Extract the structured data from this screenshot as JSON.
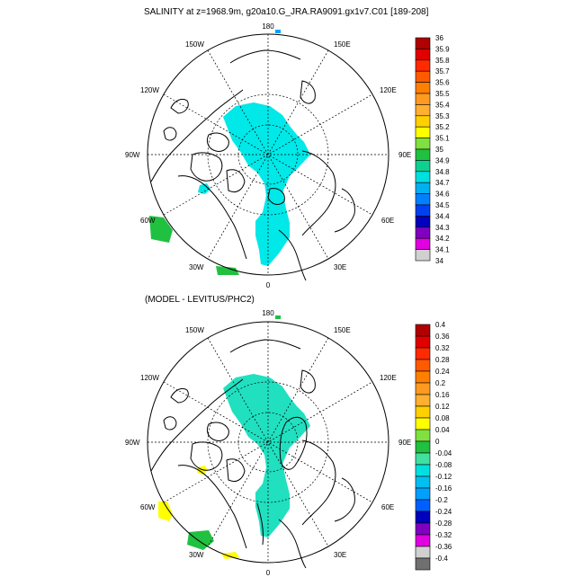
{
  "top_panel": {
    "title": "SALINITY at z=1968.9m, g20a10.G_JRA.RA9091.gx1v7.C01 [189-208]",
    "colorbar": {
      "labels": [
        "36",
        "35.9",
        "35.8",
        "35.7",
        "35.6",
        "35.5",
        "35.4",
        "35.3",
        "35.2",
        "35.1",
        "35",
        "34.9",
        "34.8",
        "34.7",
        "34.6",
        "34.5",
        "34.4",
        "34.3",
        "34.2",
        "34.1",
        "34"
      ],
      "colors": [
        "#b00000",
        "#e00000",
        "#ff2a00",
        "#ff5a00",
        "#ff8000",
        "#ff9a20",
        "#ffb030",
        "#ffd000",
        "#ffff00",
        "#7fe040",
        "#20c040",
        "#10d090",
        "#00e0e0",
        "#00b0f0",
        "#0080ff",
        "#0040f0",
        "#0000c0",
        "#8000c0",
        "#e000e0",
        "#d0d0d0"
      ]
    }
  },
  "bottom_panel": {
    "title": "(MODEL - LEVITUS/PHC2)",
    "colorbar": {
      "labels": [
        "0.4",
        "0.36",
        "0.32",
        "0.28",
        "0.24",
        "0.2",
        "0.16",
        "0.12",
        "0.08",
        "0.04",
        "0",
        "-0.04",
        "-0.08",
        "-0.12",
        "-0.16",
        "-0.2",
        "-0.24",
        "-0.28",
        "-0.32",
        "-0.36",
        "-0.4"
      ],
      "colors": [
        "#b00000",
        "#e00000",
        "#ff2a00",
        "#ff5a00",
        "#ff8000",
        "#ff9a20",
        "#ffb030",
        "#ffd000",
        "#ffff00",
        "#7fe040",
        "#20c040",
        "#40e0a0",
        "#00e0e0",
        "#00c0f0",
        "#00a0ff",
        "#0060ff",
        "#0000c0",
        "#8000c0",
        "#e000e0",
        "#d0d0d0",
        "#707070"
      ]
    }
  },
  "longitude_labels": {
    "n180": "180",
    "n150w": "150W",
    "n150e": "150E",
    "n120w": "120W",
    "n120e": "120E",
    "n90w": "90W",
    "n90e": "90E",
    "n60w": "60W",
    "n60e": "60E",
    "n30w": "30W",
    "n30e": "30E",
    "n0": "0"
  },
  "colors": {
    "top_fill": "#00e8e8",
    "bottom_fill": "#20e0c0",
    "green": "#20c040",
    "yellow": "#ffff00",
    "blue_dot": "#00a0ff"
  }
}
